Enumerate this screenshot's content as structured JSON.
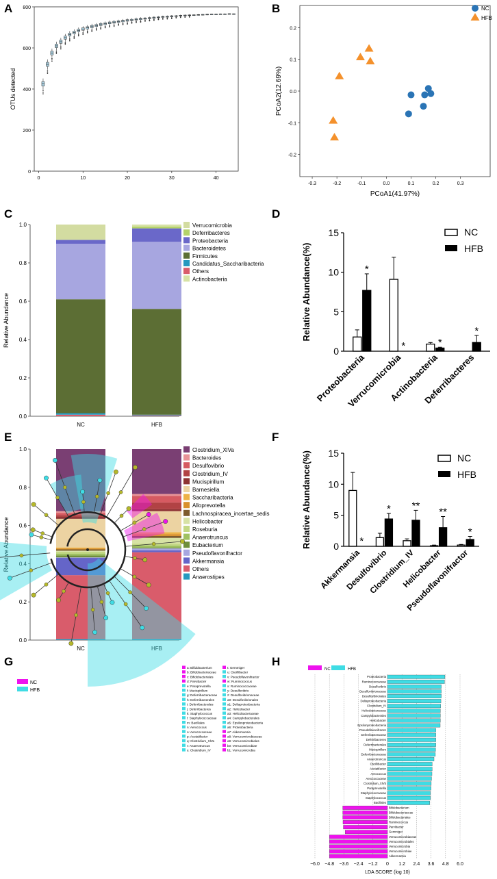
{
  "panel_labels": {
    "A": "A",
    "B": "B",
    "C": "C",
    "D": "D",
    "E": "E",
    "F": "F",
    "G": "G",
    "H": "H"
  },
  "colors": {
    "nc_blue": "#2a74b5",
    "hfb_orange": "#f4912c",
    "lefse_nc": "#ee12ee",
    "lefse_hfb": "#3fdce4",
    "tree_node": "#b5b82a",
    "box_fill": "#a9cfe0",
    "phylum": {
      "Verrucomicrobia": "#d3dca1",
      "Deferribacteres": "#b4d26a",
      "Proteobacteria": "#6a68c9",
      "Bacteroidetes": "#a7a6e0",
      "Firmicutes": "#5c6e34",
      "Candidatus_Saccharibacteria": "#2699bf",
      "Others": "#d95c6b",
      "Actinobacteria": "#d7e2a5"
    },
    "genus": {
      "Clostridium_XlVa": "#7a3f73",
      "Bacteroides": "#e79296",
      "Desulfovibrio": "#d65a61",
      "Clostridium_IV": "#b14244",
      "Mucispirillum": "#8e3434",
      "Barnesiella": "#ecd3a2",
      "Saccharibacteria": "#edb247",
      "Alloprevotella": "#d9902b",
      "Lachnospiracea_incertae_sedis": "#7d5b2d",
      "Helicobacter": "#d7e2a5",
      "Roseburia": "#c3d884",
      "Anaerotruncus": "#9fc161",
      "Eubacterium": "#6f8f3b",
      "Pseudoflavonifractor": "#a7a6e0",
      "Akkermansia": "#6565c8",
      "Others": "#d95c6b",
      "Anaerostipes": "#2699bf"
    }
  },
  "chart_data": [
    {
      "id": "A",
      "type": "box",
      "title": "",
      "xlabel": "",
      "ylabel": "OTUs detected",
      "xlim": [
        -1,
        45
      ],
      "ylim": [
        0,
        800
      ],
      "xticks": [
        0,
        10,
        20,
        30,
        40
      ],
      "yticks": [
        0,
        200,
        400,
        600,
        800
      ],
      "x": [
        1,
        2,
        3,
        4,
        5,
        6,
        7,
        8,
        9,
        10,
        11,
        12,
        13,
        14,
        15,
        16,
        17,
        18,
        19,
        20,
        21,
        22,
        23,
        24,
        25,
        26,
        27,
        28,
        29,
        30,
        31,
        32,
        33,
        34,
        35,
        36,
        37,
        38,
        39,
        40,
        41,
        42,
        43,
        44
      ],
      "median": [
        425,
        520,
        575,
        610,
        630,
        650,
        665,
        675,
        685,
        692,
        698,
        704,
        709,
        714,
        718,
        722,
        725,
        728,
        731,
        734,
        736,
        739,
        741,
        743,
        745,
        747,
        749,
        751,
        752,
        754,
        755,
        757,
        758,
        759,
        760,
        761,
        762,
        763,
        764,
        764,
        765,
        765,
        766,
        766
      ],
      "spread": [
        22,
        20,
        18,
        17,
        16,
        15,
        14,
        13,
        12,
        12,
        11,
        11,
        10,
        10,
        9,
        9,
        9,
        8,
        8,
        8,
        7,
        7,
        7,
        6,
        6,
        6,
        5,
        5,
        5,
        5,
        4,
        4,
        4,
        4,
        3,
        3,
        3,
        3,
        2,
        2,
        2,
        2,
        2,
        1
      ]
    },
    {
      "id": "B",
      "type": "scatter",
      "xlabel": "PCoA1(41.97%)",
      "ylabel": "PCoA2(12.69%)",
      "xlim": [
        -0.35,
        0.42
      ],
      "ylim": [
        -0.27,
        0.27
      ],
      "xticks": [
        -0.3,
        -0.2,
        -0.1,
        0.0,
        0.1,
        0.2,
        0.3
      ],
      "xticklabels": [
        "-0.3",
        "-0.2",
        "-0.1",
        "0.0",
        "0.1",
        "0.2",
        "0.3"
      ],
      "yticks": [
        -0.2,
        -0.1,
        0.0,
        0.1,
        0.2
      ],
      "yticklabels": [
        "-0.2",
        "-0.1",
        "0.0",
        "0.1",
        "0.2"
      ],
      "series": [
        {
          "name": "NC",
          "x": [
            0.09,
            0.1,
            0.15,
            0.155,
            0.17,
            0.18
          ],
          "y": [
            -0.072,
            -0.012,
            -0.048,
            -0.012,
            0.008,
            -0.008
          ]
        },
        {
          "name": "HFB",
          "x": [
            -0.215,
            -0.21,
            -0.19,
            -0.105,
            -0.07,
            -0.065
          ],
          "y": [
            -0.092,
            -0.145,
            0.048,
            0.108,
            0.135,
            0.095
          ]
        }
      ]
    },
    {
      "id": "C",
      "type": "stacked-bar",
      "ylabel": "Relative Abundance",
      "ylim": [
        0,
        1
      ],
      "yticklabels": [
        "0.0",
        "0.2",
        "0.4",
        "0.6",
        "0.8",
        "1.0"
      ],
      "categories": [
        "NC",
        "HFB"
      ],
      "legend": [
        "Verrucomicrobia",
        "Deferribacteres",
        "Proteobacteria",
        "Bacteroidetes",
        "Firmicutes",
        "Candidatus_Saccharibacteria",
        "Others",
        "Actinobacteria"
      ],
      "series": [
        {
          "name": "Others",
          "values": [
            0.008,
            0.004
          ]
        },
        {
          "name": "Candidatus_Saccharibacteria",
          "values": [
            0.008,
            0.004
          ]
        },
        {
          "name": "Firmicutes",
          "values": [
            0.594,
            0.552
          ]
        },
        {
          "name": "Bacteroidetes",
          "values": [
            0.29,
            0.35
          ]
        },
        {
          "name": "Proteobacteria",
          "values": [
            0.02,
            0.07
          ]
        },
        {
          "name": "Deferribacteres",
          "values": [
            0.0,
            0.01
          ]
        },
        {
          "name": "Verrucomicrobia",
          "values": [
            0.08,
            0.0
          ]
        },
        {
          "name": "Actinobacteria",
          "values": [
            0.0,
            0.01
          ]
        }
      ]
    },
    {
      "id": "D",
      "type": "bar",
      "ylabel": "Relative Abundance(%)",
      "ylim": [
        0,
        15
      ],
      "yticks": [
        0,
        5,
        10,
        15
      ],
      "categories": [
        "Proteobacteria",
        "Verrucomicrobia",
        "Actinobacteria",
        "Deferribacteres"
      ],
      "series": [
        {
          "name": "NC",
          "values": [
            1.8,
            9.1,
            0.9,
            0.0
          ],
          "errors": [
            0.9,
            2.8,
            0.2,
            0.0
          ],
          "stars": [
            "",
            "",
            "",
            ""
          ]
        },
        {
          "name": "HFB",
          "values": [
            7.7,
            0.0,
            0.4,
            1.1
          ],
          "errors": [
            2.1,
            0.0,
            0.1,
            0.9
          ],
          "stars": [
            "*",
            "*",
            "*",
            "*"
          ]
        }
      ]
    },
    {
      "id": "E",
      "type": "stacked-bar",
      "ylabel": "Relative Abundance",
      "ylim": [
        0,
        1
      ],
      "yticklabels": [
        "0.0",
        "0.2",
        "0.4",
        "0.6",
        "0.8",
        "1.0"
      ],
      "categories": [
        "NC",
        "HFB"
      ],
      "legend": [
        "Clostridium_XlVa",
        "Bacteroides",
        "Desulfovibrio",
        "Clostridium_IV",
        "Mucispirillum",
        "Barnesiella",
        "Saccharibacteria",
        "Alloprevotella",
        "Lachnospiracea_incertae_sedis",
        "Helicobacter",
        "Roseburia",
        "Anaerotruncus",
        "Eubacterium",
        "Pseudoflavonifractor",
        "Akkermansia",
        "Others",
        "Anaerostipes"
      ],
      "series": [
        {
          "name": "Anaerostipes",
          "values": [
            0.005,
            0.005
          ]
        },
        {
          "name": "Others",
          "values": [
            0.335,
            0.455
          ]
        },
        {
          "name": "Akkermansia",
          "values": [
            0.09,
            0.01
          ]
        },
        {
          "name": "Pseudoflavonifractor",
          "values": [
            0.003,
            0.01
          ]
        },
        {
          "name": "Eubacterium",
          "values": [
            0.01,
            0.005
          ]
        },
        {
          "name": "Anaerotruncus",
          "values": [
            0.01,
            0.01
          ]
        },
        {
          "name": "Roseburia",
          "values": [
            0.01,
            0.01
          ]
        },
        {
          "name": "Helicobacter",
          "values": [
            0.005,
            0.03
          ]
        },
        {
          "name": "Lachnospiracea_incertae_sedis",
          "values": [
            0.007,
            0.01
          ]
        },
        {
          "name": "Alloprevotella",
          "values": [
            0.005,
            0.01
          ]
        },
        {
          "name": "Saccharibacteria",
          "values": [
            0.005,
            0.01
          ]
        },
        {
          "name": "Barnesiella",
          "values": [
            0.15,
            0.11
          ]
        },
        {
          "name": "Mucispirillum",
          "values": [
            0.01,
            0.01
          ]
        },
        {
          "name": "Clostridium_IV",
          "values": [
            0.01,
            0.035
          ]
        },
        {
          "name": "Desulfovibrio",
          "values": [
            0.01,
            0.035
          ]
        },
        {
          "name": "Bacteroides",
          "values": [
            0.01,
            0.01
          ]
        },
        {
          "name": "Clostridium_XlVa",
          "values": [
            0.325,
            0.235
          ]
        }
      ]
    },
    {
      "id": "F",
      "type": "bar",
      "ylabel": "Relative Abundance(%)",
      "ylim": [
        0,
        15
      ],
      "yticks": [
        0,
        5,
        10,
        15
      ],
      "categories": [
        "Akkermansia",
        "Desulfovibrio",
        "Clostridium_IV",
        "Helicobacter",
        "Pseudoflavonifractor"
      ],
      "series": [
        {
          "name": "NC",
          "values": [
            9.0,
            1.4,
            0.9,
            0.1,
            0.2
          ],
          "errors": [
            2.9,
            0.7,
            0.3,
            0.1,
            0.1
          ],
          "stars": [
            "",
            "",
            "",
            "",
            ""
          ]
        },
        {
          "name": "HFB",
          "values": [
            0.0,
            4.4,
            4.2,
            3.0,
            1.1
          ],
          "errors": [
            0.0,
            0.9,
            1.6,
            1.8,
            0.5
          ],
          "stars": [
            "*",
            "*",
            "**",
            "**",
            "*"
          ]
        }
      ]
    },
    {
      "id": "G",
      "type": "cladogram",
      "legend": [
        "NC",
        "HFB"
      ],
      "key_col1": [
        "a: Bifidobacterium",
        "b: Bifidobacteriaceae",
        "c: Bifidobacteriales",
        "d: Parvibacter",
        "e: Paraprevotella",
        "f: Mucispirillum",
        "g: Deferribacteraceae",
        "h: Deferribacterales",
        "i: Deferribacterales",
        "j: Deferribacteres",
        "k: Staphylococcus",
        "l: Staphylococcaceae",
        "m: Bacillales",
        "n: Aerococcus",
        "o: Aerococcaceae",
        "p: Acetatifactor",
        "q: Clostridium_XlVa",
        "r: Anaerotruncus",
        "s: Clostridium_IV"
      ],
      "key_col2": [
        "t: Gemmiger",
        "u: Oscillibacter",
        "v: Pseudoflavonifractor",
        "w: Ruminococcus",
        "x: Ruminococcaceae",
        "y: Desulfovibrio",
        "z: Desulfovibrionaceae",
        "a0: Desulfovibrionales",
        "a1: Deltaproteobacteria",
        "a2: Helicobacter",
        "a3: Helicobacteraceae",
        "a4: Campylobacterales",
        "a5: Epsilonproteobacteria",
        "a6: Proteobacteria",
        "a7: Akkermansia",
        "a8: Verrucomicrobiaceae",
        "a9: Verrucomicrobiales",
        "b0: Verrucomicrobiae",
        "b1: Verrucomicrobia"
      ]
    },
    {
      "id": "H",
      "type": "bar-horizontal",
      "xlabel": "LDA SCORE (log 10)",
      "xlim": [
        -6.0,
        6.0
      ],
      "xticks": [
        -6.0,
        -4.8,
        -3.6,
        -2.4,
        -1.2,
        0,
        1.2,
        2.4,
        3.6,
        4.8,
        6.0
      ],
      "xticklabels": [
        "−6.0",
        "−4.8",
        "−3.6",
        "−2.4",
        "−1.2",
        "0",
        "1.2",
        "2.4",
        "3.6",
        "4.8",
        "6.0"
      ],
      "legend": [
        "NC",
        "HFB"
      ],
      "labels": [
        "Proteobacteria",
        "Ruminococcaceae",
        "Desulfovibrio",
        "Desulfovibrionaceae",
        "Desulfovibrionales",
        "Deltaproteobacteria",
        "Clostridium_IV",
        "Helicobacteraceae",
        "Campylobacterales",
        "Helicobacter",
        "Epsilonproteobacteria",
        "Pseudoflavonifractor",
        "Deferribacteraceae",
        "Deferribacteres",
        "Deferribacterales",
        "Mucispirillum",
        "Deferribacteraceae",
        "Anaerotruncus",
        "Oscillibacter",
        "Acetatifactor",
        "Aerococcus",
        "Aerococcaceae",
        "Clostridium_XlVb",
        "Paraprevotella",
        "Staphylococcaceae",
        "Staphylococcus",
        "Bacillales",
        "Bifidobacterium",
        "Bifidobacteriaceae",
        "Bifidobacteriales",
        "Ruminococcus",
        "Parvibacter",
        "Gemmiger",
        "Verrucomicrobiaceae",
        "Verrucomicrobiales",
        "Verrucomicrobia",
        "Verrucomicrobiae",
        "Akkermansia"
      ],
      "values": [
        4.75,
        4.72,
        4.45,
        4.45,
        4.45,
        4.42,
        4.4,
        4.38,
        4.38,
        4.38,
        4.36,
        4.0,
        4.0,
        4.0,
        4.0,
        3.98,
        3.96,
        3.85,
        3.7,
        3.7,
        3.68,
        3.65,
        3.62,
        3.6,
        3.55,
        3.55,
        3.5,
        -3.7,
        -3.7,
        -3.7,
        -3.68,
        -3.65,
        -3.5,
        -4.8,
        -4.8,
        -4.8,
        -4.8,
        -4.8
      ]
    }
  ]
}
